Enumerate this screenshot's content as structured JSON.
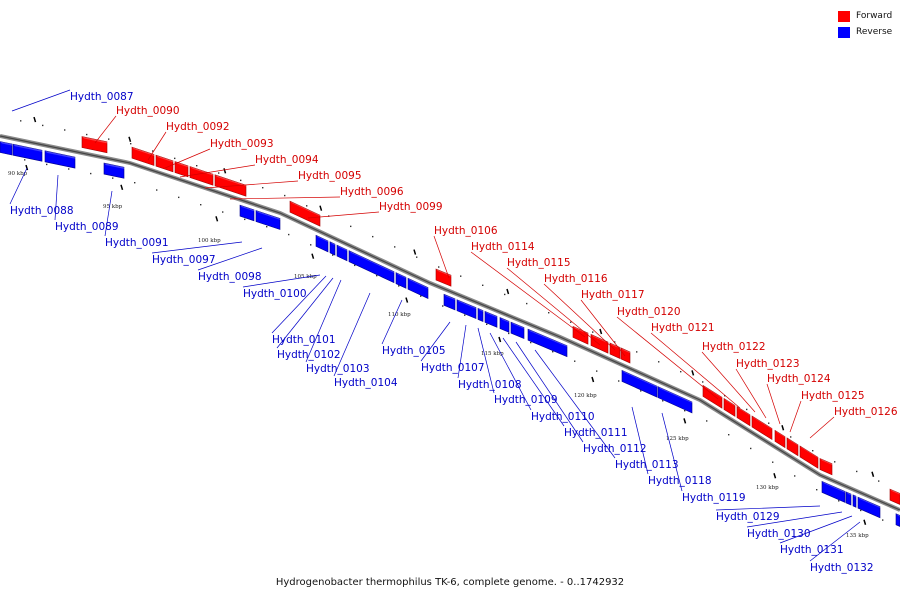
{
  "legend": {
    "forward_label": "Forward",
    "reverse_label": "Reverse",
    "forward_color": "#ff0000",
    "reverse_color": "#0000ff"
  },
  "caption": "Hydrogenobacter thermophilus TK-6, complete genome. - 0..1742932",
  "ticks": [
    "90 kbp",
    "95 kbp",
    "100 kbp",
    "105 kbp",
    "110 kbp",
    "115 kbp",
    "120 kbp",
    "125 kbp",
    "130 kbp",
    "135 kbp"
  ],
  "forward_genes": [
    "Hydth_0090",
    "Hydth_0092",
    "Hydth_0093",
    "Hydth_0094",
    "Hydth_0095",
    "Hydth_0096",
    "Hydth_0099",
    "Hydth_0106",
    "Hydth_0114",
    "Hydth_0115",
    "Hydth_0116",
    "Hydth_0117",
    "Hydth_0120",
    "Hydth_0121",
    "Hydth_0122",
    "Hydth_0123",
    "Hydth_0124",
    "Hydth_0125",
    "Hydth_0126"
  ],
  "reverse_genes": [
    "Hydth_0087",
    "Hydth_0088",
    "Hydth_0089",
    "Hydth_0091",
    "Hydth_0097",
    "Hydth_0098",
    "Hydth_0100",
    "Hydth_0101",
    "Hydth_0102",
    "Hydth_0103",
    "Hydth_0104",
    "Hydth_0105",
    "Hydth_0107",
    "Hydth_0108",
    "Hydth_0109",
    "Hydth_0110",
    "Hydth_0111",
    "Hydth_0112",
    "Hydth_0113",
    "Hydth_0118",
    "Hydth_0119",
    "Hydth_0129",
    "Hydth_0130",
    "Hydth_0131",
    "Hydth_0132"
  ]
}
